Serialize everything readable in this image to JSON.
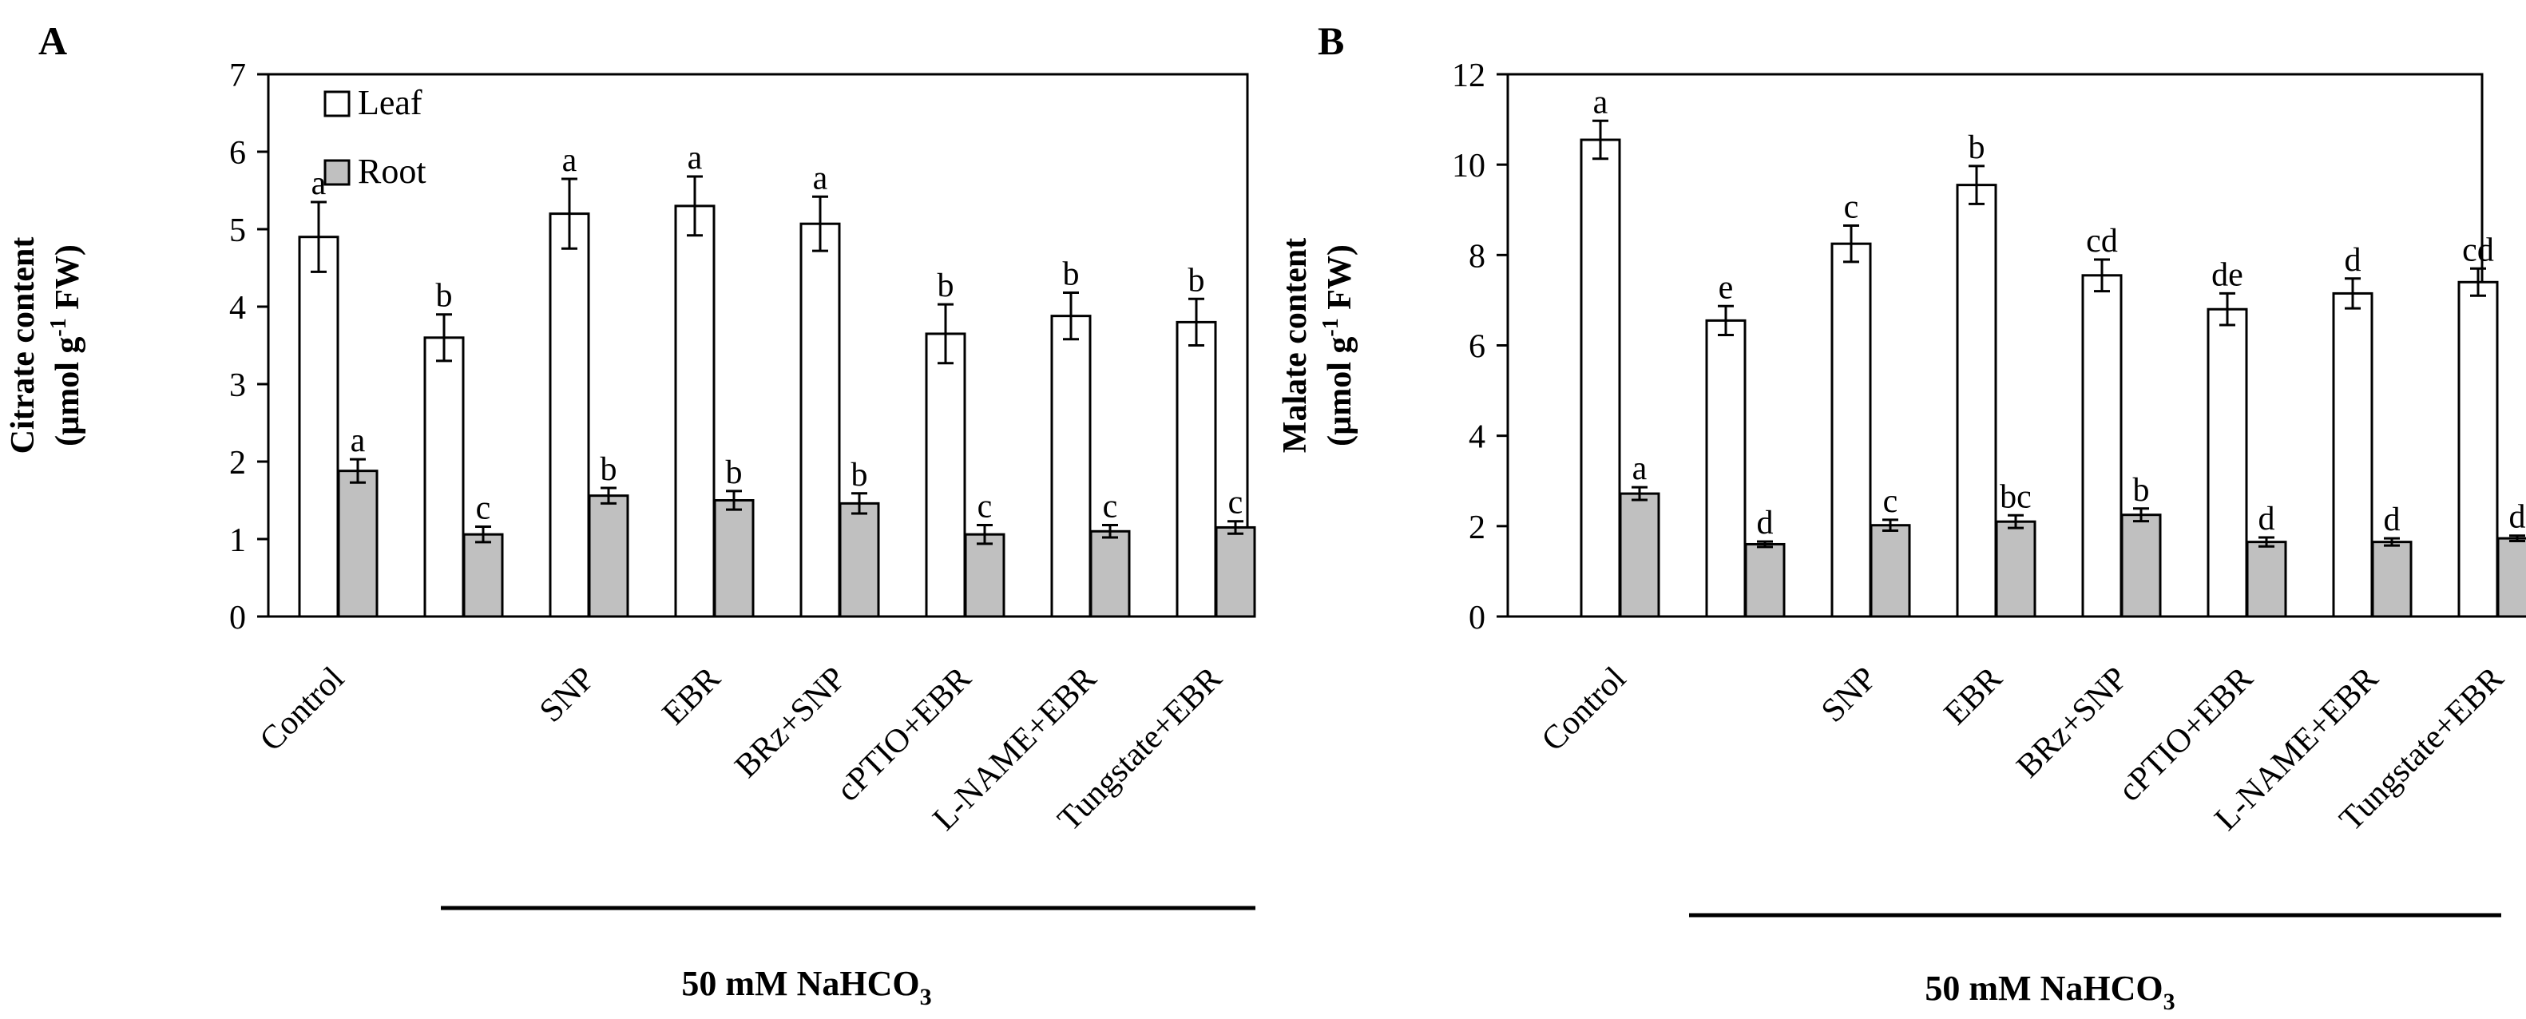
{
  "chart_data": [
    {
      "type": "bar",
      "panel_label": "A",
      "ylabel": [
        "Citrate  content",
        "(µmol  g",
        "-1",
        " FW)"
      ],
      "ylim": [
        0,
        7
      ],
      "yticks": [
        0,
        1,
        2,
        3,
        4,
        5,
        6,
        7
      ],
      "categories": [
        "Control",
        "",
        "SNP",
        "EBR",
        "BRz+SNP",
        "cPTIO+EBR",
        "L-NAME+EBR",
        "Tungstate+EBR"
      ],
      "legend": {
        "position": "top-left",
        "entries": [
          "Leaf",
          "Root"
        ]
      },
      "series": [
        {
          "name": "Leaf",
          "color": "#ffffff",
          "values": [
            4.9,
            3.6,
            5.2,
            5.3,
            5.07,
            3.65,
            3.88,
            3.8
          ],
          "errors": [
            0.45,
            0.3,
            0.45,
            0.38,
            0.35,
            0.38,
            0.3,
            0.3
          ],
          "letters": [
            "a",
            "b",
            "a",
            "a",
            "a",
            "b",
            "b",
            "b"
          ]
        },
        {
          "name": "Root",
          "color": "#c0c0c0",
          "values": [
            1.88,
            1.06,
            1.56,
            1.5,
            1.46,
            1.06,
            1.1,
            1.15
          ],
          "errors": [
            0.15,
            0.1,
            0.1,
            0.12,
            0.13,
            0.12,
            0.08,
            0.08
          ],
          "letters": [
            "a",
            "c",
            "b",
            "b",
            "b",
            "c",
            "c",
            "c"
          ]
        }
      ],
      "treatment_label": {
        "main": "50 mM NaHCO",
        "sub": "3"
      }
    },
    {
      "type": "bar",
      "panel_label": "B",
      "ylabel": [
        "Malate  content",
        "(µmol  g",
        "-1",
        " FW)"
      ],
      "ylim": [
        0,
        12
      ],
      "yticks": [
        0,
        2,
        4,
        6,
        8,
        10,
        12
      ],
      "categories": [
        "Control",
        "",
        "SNP",
        "EBR",
        "BRz+SNP",
        "cPTIO+EBR",
        "L-NAME+EBR",
        "Tungstate+EBR"
      ],
      "series": [
        {
          "name": "Leaf",
          "color": "#ffffff",
          "values": [
            10.55,
            6.55,
            8.25,
            9.55,
            7.55,
            6.8,
            7.15,
            7.4
          ],
          "errors": [
            0.42,
            0.32,
            0.4,
            0.42,
            0.35,
            0.35,
            0.33,
            0.3
          ],
          "letters": [
            "a",
            "e",
            "c",
            "b",
            "cd",
            "de",
            "d",
            "cd"
          ]
        },
        {
          "name": "Root",
          "color": "#c0c0c0",
          "values": [
            2.72,
            1.6,
            2.02,
            2.1,
            2.25,
            1.65,
            1.65,
            1.73
          ],
          "errors": [
            0.14,
            0.06,
            0.12,
            0.14,
            0.14,
            0.1,
            0.08,
            0.06
          ],
          "letters": [
            "a",
            "d",
            "c",
            "bc",
            "b",
            "d",
            "d",
            "d"
          ]
        }
      ],
      "treatment_label": {
        "main": "50 mM NaHCO",
        "sub": "3"
      }
    }
  ]
}
